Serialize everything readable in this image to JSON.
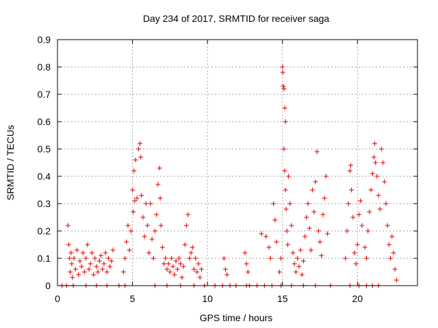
{
  "chart_data": {
    "type": "scatter",
    "title": "Day 234 of 2017, SRMTID for receiver saga",
    "xlabel": "GPS time / hours",
    "ylabel": "SRMTID / TECUs",
    "xlim": [
      0,
      24
    ],
    "ylim": [
      0,
      0.9
    ],
    "xticks": [
      0,
      5,
      10,
      15,
      20
    ],
    "xtick_labels": [
      "0",
      "5",
      "10",
      "15",
      "20"
    ],
    "yticks": [
      0,
      0.1,
      0.2,
      0.3,
      0.4,
      0.5,
      0.6,
      0.7,
      0.8,
      0.9
    ],
    "ytick_labels": [
      "0",
      "0.1",
      "0.2",
      "0.3",
      "0.4",
      "0.5",
      "0.6",
      "0.7",
      "0.8",
      "0.9"
    ],
    "grid": true,
    "marker": "+",
    "color": "#e41a1c",
    "series": [
      {
        "name": "SRMTID",
        "points": [
          [
            0.3,
            0.0
          ],
          [
            0.6,
            0.0
          ],
          [
            0.7,
            0.22
          ],
          [
            0.75,
            0.15
          ],
          [
            0.8,
            0.1
          ],
          [
            0.85,
            0.05
          ],
          [
            0.9,
            0.12
          ],
          [
            0.95,
            0.08
          ],
          [
            1.0,
            0.03
          ],
          [
            1.1,
            0.1
          ],
          [
            1.2,
            0.06
          ],
          [
            1.3,
            0.13
          ],
          [
            1.4,
            0.04
          ],
          [
            1.5,
            0.09
          ],
          [
            1.6,
            0.07
          ],
          [
            1.7,
            0.12
          ],
          [
            1.8,
            0.05
          ],
          [
            1.9,
            0.1
          ],
          [
            2.0,
            0.15
          ],
          [
            2.1,
            0.06
          ],
          [
            2.2,
            0.08
          ],
          [
            2.3,
            0.12
          ],
          [
            2.4,
            0.04
          ],
          [
            2.5,
            0.1
          ],
          [
            2.6,
            0.07
          ],
          [
            2.7,
            0.05
          ],
          [
            2.8,
            0.09
          ],
          [
            2.9,
            0.11
          ],
          [
            3.0,
            0.06
          ],
          [
            3.1,
            0.08
          ],
          [
            3.2,
            0.12
          ],
          [
            3.3,
            0.05
          ],
          [
            3.4,
            0.1
          ],
          [
            3.5,
            0.07
          ],
          [
            3.6,
            0.09
          ],
          [
            3.7,
            0.13
          ],
          [
            1.05,
            0.0
          ],
          [
            1.9,
            0.0
          ],
          [
            2.6,
            0.0
          ],
          [
            3.3,
            0.0
          ],
          [
            4.1,
            0.0
          ],
          [
            4.5,
            0.0
          ],
          [
            4.4,
            0.05
          ],
          [
            4.5,
            0.1
          ],
          [
            4.6,
            0.16
          ],
          [
            4.7,
            0.22
          ],
          [
            4.8,
            0.13
          ],
          [
            4.9,
            0.2
          ],
          [
            5.0,
            0.35
          ],
          [
            5.05,
            0.27
          ],
          [
            5.1,
            0.42
          ],
          [
            5.15,
            0.31
          ],
          [
            5.2,
            0.46
          ],
          [
            5.3,
            0.32
          ],
          [
            5.4,
            0.5
          ],
          [
            5.5,
            0.52
          ],
          [
            5.55,
            0.47
          ],
          [
            5.6,
            0.33
          ],
          [
            5.7,
            0.25
          ],
          [
            5.8,
            0.18
          ],
          [
            5.9,
            0.3
          ],
          [
            6.0,
            0.22
          ],
          [
            6.1,
            0.12
          ],
          [
            6.2,
            0.3
          ],
          [
            6.3,
            0.17
          ],
          [
            6.4,
            0.1
          ],
          [
            6.5,
            0.2
          ],
          [
            6.6,
            0.26
          ],
          [
            6.7,
            0.37
          ],
          [
            6.8,
            0.43
          ],
          [
            6.85,
            0.32
          ],
          [
            6.9,
            0.22
          ],
          [
            7.0,
            0.14
          ],
          [
            7.1,
            0.08
          ],
          [
            7.2,
            0.1
          ],
          [
            7.3,
            0.06
          ],
          [
            7.4,
            0.08
          ],
          [
            7.5,
            0.05
          ],
          [
            7.6,
            0.1
          ],
          [
            7.7,
            0.07
          ],
          [
            7.8,
            0.04
          ],
          [
            7.9,
            0.09
          ],
          [
            8.0,
            0.06
          ],
          [
            8.1,
            0.1
          ],
          [
            8.2,
            0.08
          ],
          [
            8.3,
            0.03
          ],
          [
            8.4,
            0.07
          ],
          [
            8.5,
            0.15
          ],
          [
            8.6,
            0.22
          ],
          [
            8.7,
            0.26
          ],
          [
            8.8,
            0.1
          ],
          [
            8.9,
            0.12
          ],
          [
            9.0,
            0.14
          ],
          [
            9.1,
            0.06
          ],
          [
            9.2,
            0.1
          ],
          [
            9.3,
            0.05
          ],
          [
            9.4,
            0.08
          ],
          [
            9.5,
            0.03
          ],
          [
            9.6,
            0.06
          ],
          [
            6.5,
            0.0
          ],
          [
            7.3,
            0.0
          ],
          [
            8.2,
            0.0
          ],
          [
            9.1,
            0.0
          ],
          [
            9.8,
            0.0
          ],
          [
            10.5,
            0.0
          ],
          [
            11.0,
            0.0
          ],
          [
            11.5,
            0.0
          ],
          [
            11.9,
            0.0
          ],
          [
            12.6,
            0.0
          ],
          [
            12.8,
            0.0
          ],
          [
            13.3,
            0.0
          ],
          [
            13.8,
            0.0
          ],
          [
            14.3,
            0.0
          ],
          [
            11.1,
            0.1
          ],
          [
            11.2,
            0.06
          ],
          [
            11.3,
            0.04
          ],
          [
            12.5,
            0.12
          ],
          [
            12.6,
            0.08
          ],
          [
            12.7,
            0.05
          ],
          [
            13.6,
            0.19
          ],
          [
            13.9,
            0.18
          ],
          [
            14.1,
            0.14
          ],
          [
            14.2,
            0.1
          ],
          [
            14.4,
            0.3
          ],
          [
            14.5,
            0.24
          ],
          [
            14.6,
            0.16
          ],
          [
            14.8,
            0.05
          ],
          [
            14.9,
            0.1
          ],
          [
            15.0,
            0.8
          ],
          [
            15.02,
            0.78
          ],
          [
            15.05,
            0.73
          ],
          [
            15.1,
            0.72
          ],
          [
            15.15,
            0.65
          ],
          [
            15.2,
            0.6
          ],
          [
            15.1,
            0.5
          ],
          [
            15.15,
            0.42
          ],
          [
            15.2,
            0.35
          ],
          [
            15.25,
            0.28
          ],
          [
            15.3,
            0.2
          ],
          [
            15.35,
            0.15
          ],
          [
            15.4,
            0.4
          ],
          [
            15.5,
            0.3
          ],
          [
            15.6,
            0.22
          ],
          [
            15.7,
            0.12
          ],
          [
            15.8,
            0.08
          ],
          [
            15.9,
            0.05
          ],
          [
            16.0,
            0.1
          ],
          [
            16.1,
            0.07
          ],
          [
            16.2,
            0.13
          ],
          [
            16.3,
            0.04
          ],
          [
            16.4,
            0.09
          ],
          [
            16.5,
            0.18
          ],
          [
            16.6,
            0.25
          ],
          [
            16.7,
            0.3
          ],
          [
            16.8,
            0.21
          ],
          [
            16.9,
            0.13
          ],
          [
            17.0,
            0.35
          ],
          [
            17.1,
            0.27
          ],
          [
            17.2,
            0.38
          ],
          [
            17.3,
            0.49
          ],
          [
            17.4,
            0.2
          ],
          [
            17.5,
            0.16
          ],
          [
            17.6,
            0.11
          ],
          [
            17.7,
            0.26
          ],
          [
            17.8,
            0.32
          ],
          [
            17.9,
            0.4
          ],
          [
            18.0,
            0.19
          ],
          [
            14.9,
            0.0
          ],
          [
            15.6,
            0.0
          ],
          [
            16.4,
            0.0
          ],
          [
            17.2,
            0.0
          ],
          [
            18.2,
            0.0
          ],
          [
            19.5,
            0.0
          ],
          [
            20.1,
            0.0
          ],
          [
            20.6,
            0.0
          ],
          [
            21.0,
            0.0
          ],
          [
            21.4,
            0.0
          ],
          [
            19.2,
            0.1
          ],
          [
            19.3,
            0.2
          ],
          [
            19.4,
            0.3
          ],
          [
            19.5,
            0.42
          ],
          [
            19.55,
            0.44
          ],
          [
            19.6,
            0.35
          ],
          [
            19.7,
            0.25
          ],
          [
            19.8,
            0.12
          ],
          [
            19.9,
            0.08
          ],
          [
            20.0,
            0.15
          ],
          [
            20.1,
            0.26
          ],
          [
            20.2,
            0.31
          ],
          [
            20.3,
            0.22
          ],
          [
            20.5,
            0.14
          ],
          [
            20.6,
            0.1
          ],
          [
            20.7,
            0.2
          ],
          [
            20.8,
            0.27
          ],
          [
            20.9,
            0.35
          ],
          [
            21.0,
            0.41
          ],
          [
            21.1,
            0.47
          ],
          [
            21.15,
            0.52
          ],
          [
            21.2,
            0.45
          ],
          [
            21.3,
            0.4
          ],
          [
            21.4,
            0.33
          ],
          [
            21.5,
            0.28
          ],
          [
            21.6,
            0.5
          ],
          [
            21.7,
            0.45
          ],
          [
            21.8,
            0.38
          ],
          [
            21.9,
            0.3
          ],
          [
            22.0,
            0.22
          ],
          [
            22.1,
            0.15
          ],
          [
            22.2,
            0.1
          ],
          [
            22.3,
            0.18
          ],
          [
            22.4,
            0.12
          ],
          [
            22.5,
            0.06
          ],
          [
            22.6,
            0.02
          ]
        ]
      }
    ]
  }
}
